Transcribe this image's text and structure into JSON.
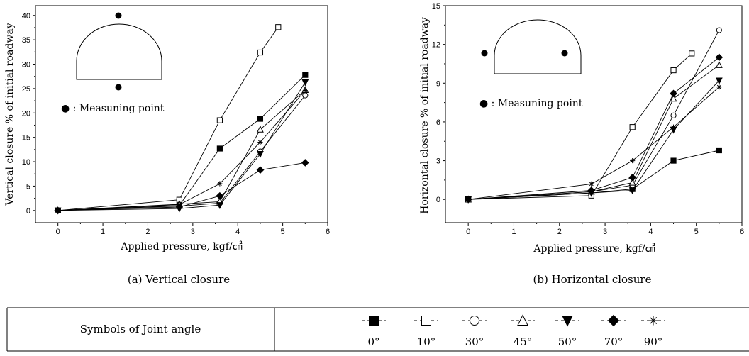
{
  "chart_data": [
    {
      "type": "line",
      "caption": "(a)  Vertical  closure",
      "xlabel": "Applied pressure, kgf/㎠",
      "ylabel": "Vertical closure % of initial roadway",
      "xlim": [
        -0.5,
        6
      ],
      "ylim": [
        -2.5,
        42
      ],
      "xticks": [
        0,
        1,
        2,
        3,
        4,
        5,
        6
      ],
      "yticks": [
        0,
        5,
        10,
        15,
        20,
        25,
        30,
        35,
        40
      ],
      "inset_note": "● : Measuning point",
      "x": [
        0,
        2.7,
        3.6,
        4.5,
        5.5
      ],
      "series": [
        {
          "name": "0°",
          "marker": "square-filled",
          "x": [
            0,
            2.7,
            3.6,
            4.5,
            5.5
          ],
          "values": [
            0,
            1.0,
            12.7,
            18.8,
            27.8
          ]
        },
        {
          "name": "10°",
          "marker": "square-open",
          "x": [
            0,
            2.7,
            3.6,
            4.5,
            4.9
          ],
          "values": [
            0,
            2.2,
            18.5,
            32.4,
            37.6
          ]
        },
        {
          "name": "30°",
          "marker": "circle-open",
          "x": [
            0,
            2.7,
            3.6,
            4.5,
            5.5
          ],
          "values": [
            0,
            0.9,
            1.5,
            12.1,
            23.6
          ]
        },
        {
          "name": "45°",
          "marker": "triangle-open",
          "x": [
            0,
            2.7,
            3.6,
            4.5,
            5.5
          ],
          "values": [
            0,
            1.3,
            1.8,
            16.6,
            24.7
          ]
        },
        {
          "name": "50°",
          "marker": "triangle-down",
          "x": [
            0,
            2.7,
            3.6,
            4.5,
            5.5
          ],
          "values": [
            0,
            0.4,
            1.1,
            11.6,
            26.3
          ]
        },
        {
          "name": "70°",
          "marker": "diamond-filled",
          "x": [
            0,
            2.7,
            3.6,
            4.5,
            5.5
          ],
          "values": [
            0,
            0.7,
            3.0,
            8.3,
            9.8
          ]
        },
        {
          "name": "90°",
          "marker": "star",
          "x": [
            0,
            2.7,
            3.6,
            4.5,
            5.5
          ],
          "values": [
            0,
            1.2,
            5.5,
            14.0,
            24.6
          ]
        }
      ]
    },
    {
      "type": "line",
      "caption": "(b)  Horizontal  closure",
      "xlabel": "Applied pressure, kgf/㎠",
      "ylabel": "Horizontal closure % of initial roadway",
      "xlim": [
        -0.5,
        6
      ],
      "ylim": [
        -1.8,
        15
      ],
      "xticks": [
        0,
        1,
        2,
        3,
        4,
        5,
        6
      ],
      "yticks": [
        0,
        3,
        6,
        9,
        12,
        15
      ],
      "inset_note": "● : Measuning point",
      "series": [
        {
          "name": "0°",
          "marker": "square-filled",
          "x": [
            0,
            2.7,
            3.6,
            4.5,
            5.5
          ],
          "values": [
            0,
            0.5,
            0.8,
            3.0,
            3.8
          ]
        },
        {
          "name": "10°",
          "marker": "square-open",
          "x": [
            0,
            2.7,
            3.6,
            4.5,
            4.9
          ],
          "values": [
            0,
            0.3,
            5.6,
            10.0,
            11.3
          ]
        },
        {
          "name": "30°",
          "marker": "circle-open",
          "x": [
            0,
            2.7,
            3.6,
            4.5,
            5.5
          ],
          "values": [
            0,
            0.6,
            1.1,
            6.5,
            13.1
          ]
        },
        {
          "name": "45°",
          "marker": "triangle-open",
          "x": [
            0,
            2.7,
            3.6,
            4.5,
            5.5
          ],
          "values": [
            0,
            0.6,
            1.3,
            7.8,
            10.4
          ]
        },
        {
          "name": "50°",
          "marker": "triangle-down",
          "x": [
            0,
            2.7,
            3.6,
            4.5,
            5.5
          ],
          "values": [
            0,
            0.5,
            0.7,
            5.4,
            9.2
          ]
        },
        {
          "name": "70°",
          "marker": "diamond-filled",
          "x": [
            0,
            2.7,
            3.6,
            4.5,
            5.5
          ],
          "values": [
            0,
            0.7,
            1.7,
            8.2,
            11.0
          ]
        },
        {
          "name": "90°",
          "marker": "star",
          "x": [
            0,
            2.7,
            3.6,
            4.5,
            5.5
          ],
          "values": [
            0,
            1.2,
            3.0,
            5.6,
            8.7
          ]
        }
      ]
    }
  ],
  "legend_table": {
    "title": "Symbols of Joint angle",
    "entries": [
      {
        "marker": "square-filled",
        "label": "0°"
      },
      {
        "marker": "square-open",
        "label": "10°"
      },
      {
        "marker": "circle-open",
        "label": "30°"
      },
      {
        "marker": "triangle-open",
        "label": "45°"
      },
      {
        "marker": "triangle-down",
        "label": "50°"
      },
      {
        "marker": "diamond-filled",
        "label": "70°"
      },
      {
        "marker": "star",
        "label": "90°"
      }
    ]
  }
}
